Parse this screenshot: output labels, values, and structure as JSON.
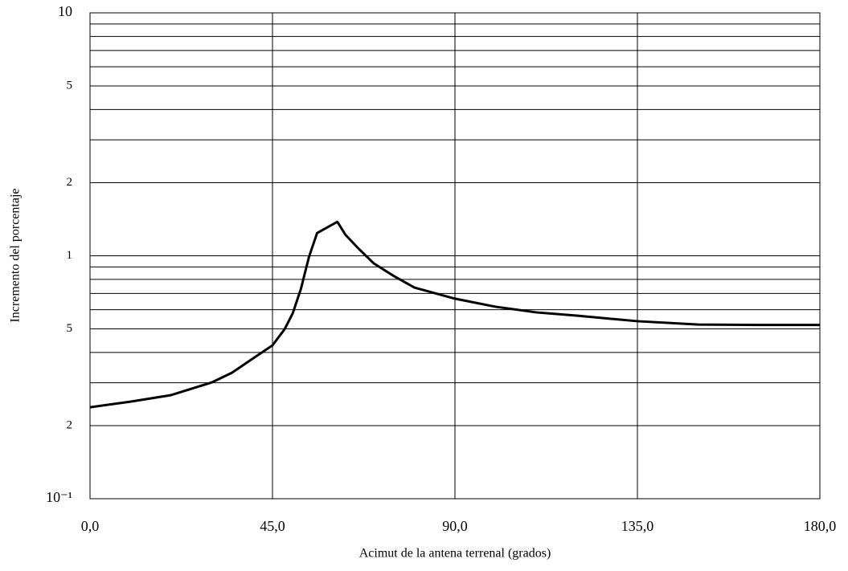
{
  "chart_data": {
    "type": "line",
    "x_label": "Acimut de la antena terrenal (grados)",
    "y_label": "Incremento del porcentaje",
    "x": [
      0,
      10,
      20,
      30,
      35,
      40,
      45,
      48,
      50,
      52,
      54,
      56,
      61,
      63,
      66,
      70,
      75,
      80,
      90,
      100,
      110,
      120,
      135,
      150,
      165,
      180
    ],
    "series": [
      {
        "color": "#000000",
        "values": [
          0.238,
          0.251,
          0.267,
          0.301,
          0.33,
          0.376,
          0.428,
          0.499,
          0.58,
          0.73,
          0.989,
          1.24,
          1.38,
          1.22,
          1.08,
          0.93,
          0.824,
          0.74,
          0.666,
          0.617,
          0.585,
          0.567,
          0.538,
          0.521,
          0.519,
          0.519
        ]
      }
    ],
    "xlim": [
      0,
      180
    ],
    "xticks": [
      {
        "value": 0,
        "label": "0,0"
      },
      {
        "value": 45,
        "label": "45,0"
      },
      {
        "value": 90,
        "label": "90,0"
      },
      {
        "value": 135,
        "label": "135,0"
      },
      {
        "value": 180,
        "label": "180,0"
      }
    ],
    "ylim": [
      0.1,
      10
    ],
    "y_log": true,
    "yticks": [
      {
        "value": 0.1,
        "label": "10⁻¹"
      },
      {
        "value": 0.2,
        "label": "2"
      },
      {
        "value": 0.5,
        "label": "5"
      },
      1,
      2,
      5,
      10
    ],
    "yminorticks": [
      0.3,
      0.4,
      0.6,
      0.7,
      0.8,
      0.9,
      3,
      4,
      6,
      7,
      8,
      9
    ],
    "grid": true
  }
}
